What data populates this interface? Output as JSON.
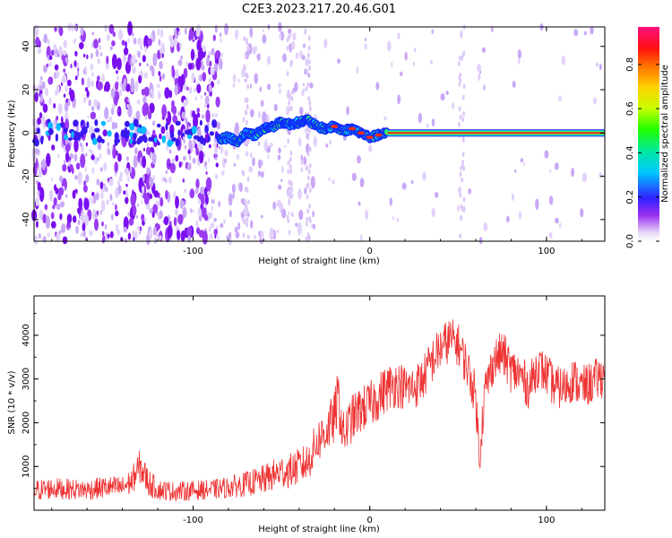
{
  "title": "C2E3.2023.217.20.46.G01",
  "colors": {
    "snr_line": "#ee3333",
    "axis": "#000000"
  },
  "chart_data": [
    {
      "type": "heatmap",
      "xlabel": "Height of straight line (km)",
      "ylabel": "Frequency (Hz)",
      "xlim": [
        -190,
        133
      ],
      "ylim": [
        -50,
        49
      ],
      "xticks": [
        -100,
        0,
        100
      ],
      "yticks": [
        -40,
        -20,
        0,
        20,
        40
      ],
      "grid": false,
      "colorbar": {
        "label": "Normalized spectral amplitude",
        "range": [
          0,
          0.97
        ],
        "ticks": [
          "0.0",
          "0.2",
          "0.4",
          "0.6",
          "0.8"
        ],
        "colormap": "rainbow (white-violet-blue-cyan-green-yellow-orange-red-magenta)"
      },
      "ridge": {
        "description": "dominant spectral line frequency vs height",
        "x": [
          -85,
          -80,
          -75,
          -70,
          -65,
          -60,
          -55,
          -50,
          -45,
          -40,
          -35,
          -30,
          -25,
          -20,
          -15,
          -10,
          -5,
          0,
          5,
          10,
          15,
          20,
          40,
          60,
          80,
          100,
          133
        ],
        "y": [
          -3,
          -2,
          -4,
          0,
          -1,
          2,
          3,
          5,
          4,
          5,
          6,
          3,
          2,
          3,
          1,
          2,
          0,
          -2,
          -1,
          0,
          0,
          0,
          0,
          0,
          0,
          0,
          0
        ]
      },
      "noise_region_x": [
        -190,
        -85
      ]
    },
    {
      "type": "line",
      "xlabel": "Height of straight line (km)",
      "ylabel": "SNR (10 * v/v)",
      "xlim": [
        -190,
        133
      ],
      "ylim": [
        0,
        4900
      ],
      "xticks": [
        -100,
        0,
        100
      ],
      "yticks": [
        1000,
        2000,
        3000,
        4000
      ],
      "grid": false,
      "series": [
        {
          "x": [
            -190,
            -180,
            -170,
            -160,
            -150,
            -140,
            -135,
            -130,
            -125,
            -120,
            -110,
            -100,
            -90,
            -80,
            -70,
            -60,
            -50,
            -45,
            -40,
            -35,
            -30,
            -25,
            -20,
            -18,
            -15,
            -10,
            -5,
            0,
            5,
            10,
            15,
            20,
            25,
            30,
            35,
            40,
            45,
            50,
            55,
            60,
            62,
            65,
            70,
            75,
            80,
            85,
            90,
            95,
            100,
            105,
            110,
            115,
            120,
            125,
            133
          ],
          "y": [
            450,
            500,
            480,
            470,
            520,
            520,
            650,
            1000,
            620,
            470,
            430,
            450,
            470,
            520,
            600,
            700,
            880,
            900,
            1000,
            1100,
            1550,
            1800,
            2100,
            2600,
            1700,
            2100,
            2300,
            2400,
            2600,
            2800,
            2900,
            2800,
            2800,
            3000,
            3400,
            3700,
            3900,
            3800,
            3300,
            2600,
            1200,
            2700,
            3400,
            3600,
            3200,
            3100,
            2800,
            3300,
            3100,
            2800,
            2800,
            3000,
            2800,
            2900,
            3100
          ],
          "band": [
            500,
            500,
            480,
            470,
            520,
            520,
            600,
            800,
            650,
            480,
            450,
            450,
            450,
            500,
            580,
            680,
            780,
            800,
            850,
            900,
            1000,
            1100,
            1200,
            1300,
            1100,
            1100,
            1100,
            1100,
            1100,
            1100,
            1100,
            1050,
            1050,
            1050,
            1050,
            1050,
            1050,
            1000,
            1000,
            1000,
            1000,
            1000,
            1000,
            1050,
            1050,
            1050,
            1000,
            1000,
            1000,
            1000,
            1000,
            1000,
            1000,
            1000,
            1000
          ]
        }
      ]
    }
  ]
}
